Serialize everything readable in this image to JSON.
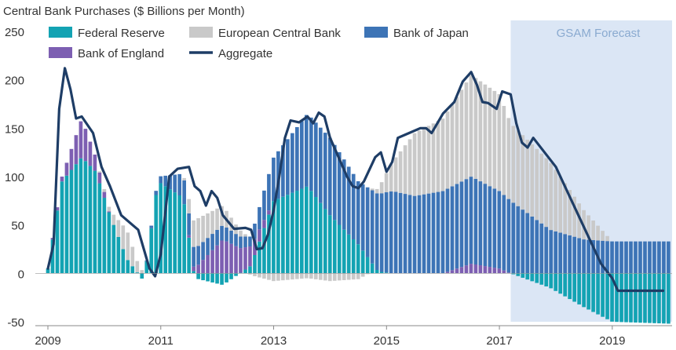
{
  "chart_data": {
    "type": "bar",
    "stacked": true,
    "title": "Central Bank Purchases ($ Billions per Month)",
    "forecast_label": "GSAM Forecast",
    "forecast_start": 2017.2,
    "ylim": [
      -50,
      250
    ],
    "yticks": [
      250,
      200,
      150,
      100,
      50,
      0,
      -50
    ],
    "xticks": [
      "2009",
      "2011",
      "2013",
      "2015",
      "2017",
      "2019"
    ],
    "xlim": [
      2009.0,
      2019.99
    ],
    "x_start": 2009.0,
    "x_step": 0.0833,
    "series": [
      {
        "key": "fed",
        "name": "Federal Reserve",
        "color": "#13a3b3"
      },
      {
        "key": "ecb",
        "name": "European Central Bank",
        "color": "#c9c9c9"
      },
      {
        "key": "boj",
        "name": "Bank of Japan",
        "color": "#3d74b6"
      },
      {
        "key": "boe",
        "name": "Bank of England",
        "color": "#7d5fb2"
      }
    ],
    "line_series": {
      "name": "Aggregate",
      "color": "#1e3d66"
    },
    "periods": [
      {
        "span": [
          2009.0,
          2009.25
        ],
        "fed": [
          5,
          95
        ],
        "boe": [
          0,
          5
        ],
        "boj": [
          0,
          0
        ],
        "ecb": [
          0,
          0
        ]
      },
      {
        "span": [
          2009.25,
          2009.6
        ],
        "fed": [
          95,
          120
        ],
        "boe": [
          5,
          40
        ],
        "boj": [
          0,
          0
        ],
        "ecb": [
          0,
          0
        ]
      },
      {
        "span": [
          2009.6,
          2009.85
        ],
        "fed": [
          120,
          105
        ],
        "boe": [
          40,
          15
        ],
        "boj": [
          0,
          0
        ],
        "ecb": [
          0,
          0
        ]
      },
      {
        "span": [
          2009.85,
          2010.1
        ],
        "fed": [
          105,
          60
        ],
        "boe": [
          15,
          0
        ],
        "boj": [
          0,
          0
        ],
        "ecb": [
          0,
          5
        ]
      },
      {
        "span": [
          2010.1,
          2010.4
        ],
        "fed": [
          60,
          15
        ],
        "boe": [
          0,
          0
        ],
        "boj": [
          0,
          0
        ],
        "ecb": [
          5,
          30
        ]
      },
      {
        "span": [
          2010.4,
          2010.7
        ],
        "fed": [
          15,
          -8
        ],
        "boe": [
          0,
          0
        ],
        "boj": [
          0,
          0
        ],
        "ecb": [
          30,
          0
        ]
      },
      {
        "span": [
          2010.7,
          2010.95
        ],
        "fed": [
          -8,
          95
        ],
        "boe": [
          0,
          0
        ],
        "boj": [
          0,
          5
        ],
        "ecb": [
          0,
          0
        ]
      },
      {
        "span": [
          2010.95,
          2011.4
        ],
        "fed": [
          95,
          78
        ],
        "boe": [
          0,
          0
        ],
        "boj": [
          5,
          25
        ],
        "ecb": [
          0,
          0
        ]
      },
      {
        "span": [
          2011.4,
          2011.6
        ],
        "fed": [
          78,
          -5
        ],
        "boe": [
          0,
          5
        ],
        "boj": [
          25,
          20
        ],
        "ecb": [
          0,
          30
        ]
      },
      {
        "span": [
          2011.6,
          2012.1
        ],
        "fed": [
          -5,
          -12
        ],
        "boe": [
          5,
          35
        ],
        "boj": [
          20,
          15
        ],
        "ecb": [
          30,
          20
        ]
      },
      {
        "span": [
          2012.1,
          2012.6
        ],
        "fed": [
          -12,
          8
        ],
        "boe": [
          35,
          20
        ],
        "boj": [
          15,
          10
        ],
        "ecb": [
          20,
          -2
        ]
      },
      {
        "span": [
          2012.6,
          2013.0
        ],
        "fed": [
          8,
          75
        ],
        "boe": [
          20,
          0
        ],
        "boj": [
          10,
          45
        ],
        "ecb": [
          -2,
          -8
        ]
      },
      {
        "span": [
          2013.0,
          2013.6
        ],
        "fed": [
          75,
          90
        ],
        "boe": [
          0,
          0
        ],
        "boj": [
          45,
          75
        ],
        "ecb": [
          -8,
          -5
        ]
      },
      {
        "span": [
          2013.6,
          2014.0
        ],
        "fed": [
          90,
          60
        ],
        "boe": [
          0,
          0
        ],
        "boj": [
          75,
          80
        ],
        "ecb": [
          -5,
          -8
        ]
      },
      {
        "span": [
          2014.0,
          2014.5
        ],
        "fed": [
          60,
          30
        ],
        "boe": [
          0,
          0
        ],
        "boj": [
          80,
          65
        ],
        "ecb": [
          -8,
          -6
        ]
      },
      {
        "span": [
          2014.5,
          2014.85
        ],
        "fed": [
          30,
          2
        ],
        "boe": [
          0,
          0
        ],
        "boj": [
          65,
          80
        ],
        "ecb": [
          -6,
          5
        ]
      },
      {
        "span": [
          2014.85,
          2015.1
        ],
        "fed": [
          2,
          0
        ],
        "boe": [
          0,
          0
        ],
        "boj": [
          80,
          85
        ],
        "ecb": [
          5,
          30
        ]
      },
      {
        "span": [
          2015.1,
          2015.5
        ],
        "fed": [
          0,
          0
        ],
        "boe": [
          0,
          0
        ],
        "boj": [
          85,
          80
        ],
        "ecb": [
          30,
          65
        ]
      },
      {
        "span": [
          2015.5,
          2016.0
        ],
        "fed": [
          0,
          0
        ],
        "boe": [
          0,
          0
        ],
        "boj": [
          80,
          85
        ],
        "ecb": [
          65,
          75
        ]
      },
      {
        "span": [
          2016.0,
          2016.5
        ],
        "fed": [
          0,
          0
        ],
        "boe": [
          0,
          10
        ],
        "boj": [
          85,
          90
        ],
        "ecb": [
          75,
          105
        ]
      },
      {
        "span": [
          2016.5,
          2017.0
        ],
        "fed": [
          0,
          0
        ],
        "boe": [
          10,
          5
        ],
        "boj": [
          90,
          80
        ],
        "ecb": [
          105,
          100
        ]
      },
      {
        "span": [
          2017.0,
          2017.2
        ],
        "fed": [
          0,
          0
        ],
        "boe": [
          5,
          0
        ],
        "boj": [
          80,
          75
        ],
        "ecb": [
          100,
          80
        ]
      },
      {
        "span": [
          2017.2,
          2017.9
        ],
        "fed": [
          0,
          -15
        ],
        "boe": [
          0,
          0
        ],
        "boj": [
          75,
          45
        ],
        "ecb": [
          80,
          70
        ]
      },
      {
        "span": [
          2017.9,
          2018.5
        ],
        "fed": [
          -15,
          -35
        ],
        "boe": [
          0,
          0
        ],
        "boj": [
          45,
          35
        ],
        "ecb": [
          70,
          30
        ]
      },
      {
        "span": [
          2018.5,
          2019.0
        ],
        "fed": [
          -35,
          -50
        ],
        "boe": [
          0,
          0
        ],
        "boj": [
          35,
          33
        ],
        "ecb": [
          30,
          0
        ]
      },
      {
        "span": [
          2019.0,
          2020.0
        ],
        "fed": [
          -50,
          -52
        ],
        "boe": [
          0,
          0
        ],
        "boj": [
          33,
          33
        ],
        "ecb": [
          0,
          0
        ]
      }
    ],
    "aggregate": [
      [
        2009.0,
        5
      ],
      [
        2009.1,
        30
      ],
      [
        2009.2,
        170
      ],
      [
        2009.3,
        212
      ],
      [
        2009.4,
        190
      ],
      [
        2009.5,
        160
      ],
      [
        2009.6,
        162
      ],
      [
        2009.8,
        145
      ],
      [
        2009.95,
        110
      ],
      [
        2010.1,
        90
      ],
      [
        2010.3,
        60
      ],
      [
        2010.5,
        50
      ],
      [
        2010.6,
        45
      ],
      [
        2010.7,
        25
      ],
      [
        2010.8,
        5
      ],
      [
        2010.9,
        -3
      ],
      [
        2011.0,
        20
      ],
      [
        2011.15,
        100
      ],
      [
        2011.3,
        108
      ],
      [
        2011.5,
        110
      ],
      [
        2011.6,
        90
      ],
      [
        2011.7,
        85
      ],
      [
        2011.8,
        70
      ],
      [
        2011.9,
        85
      ],
      [
        2012.0,
        78
      ],
      [
        2012.1,
        60
      ],
      [
        2012.3,
        46
      ],
      [
        2012.5,
        47
      ],
      [
        2012.6,
        45
      ],
      [
        2012.7,
        25
      ],
      [
        2012.8,
        26
      ],
      [
        2012.9,
        40
      ],
      [
        2013.0,
        65
      ],
      [
        2013.1,
        100
      ],
      [
        2013.2,
        140
      ],
      [
        2013.3,
        158
      ],
      [
        2013.45,
        156
      ],
      [
        2013.6,
        162
      ],
      [
        2013.7,
        155
      ],
      [
        2013.8,
        166
      ],
      [
        2013.9,
        162
      ],
      [
        2014.0,
        140
      ],
      [
        2014.15,
        120
      ],
      [
        2014.3,
        100
      ],
      [
        2014.4,
        90
      ],
      [
        2014.5,
        88
      ],
      [
        2014.6,
        95
      ],
      [
        2014.8,
        120
      ],
      [
        2014.9,
        125
      ],
      [
        2015.0,
        105
      ],
      [
        2015.1,
        115
      ],
      [
        2015.2,
        140
      ],
      [
        2015.4,
        145
      ],
      [
        2015.6,
        150
      ],
      [
        2015.7,
        150
      ],
      [
        2015.8,
        145
      ],
      [
        2015.9,
        155
      ],
      [
        2016.0,
        165
      ],
      [
        2016.2,
        177
      ],
      [
        2016.35,
        198
      ],
      [
        2016.5,
        208
      ],
      [
        2016.6,
        195
      ],
      [
        2016.7,
        177
      ],
      [
        2016.8,
        176
      ],
      [
        2016.95,
        170
      ],
      [
        2017.05,
        188
      ],
      [
        2017.2,
        185
      ],
      [
        2017.3,
        155
      ],
      [
        2017.4,
        135
      ],
      [
        2017.5,
        130
      ],
      [
        2017.6,
        140
      ],
      [
        2017.8,
        125
      ],
      [
        2018.0,
        110
      ],
      [
        2018.2,
        85
      ],
      [
        2018.4,
        60
      ],
      [
        2018.6,
        35
      ],
      [
        2018.8,
        10
      ],
      [
        2019.0,
        -5
      ],
      [
        2019.1,
        -18
      ],
      [
        2019.3,
        -18
      ],
      [
        2019.9,
        -18
      ]
    ],
    "xlabel": "",
    "ylabel": ""
  }
}
